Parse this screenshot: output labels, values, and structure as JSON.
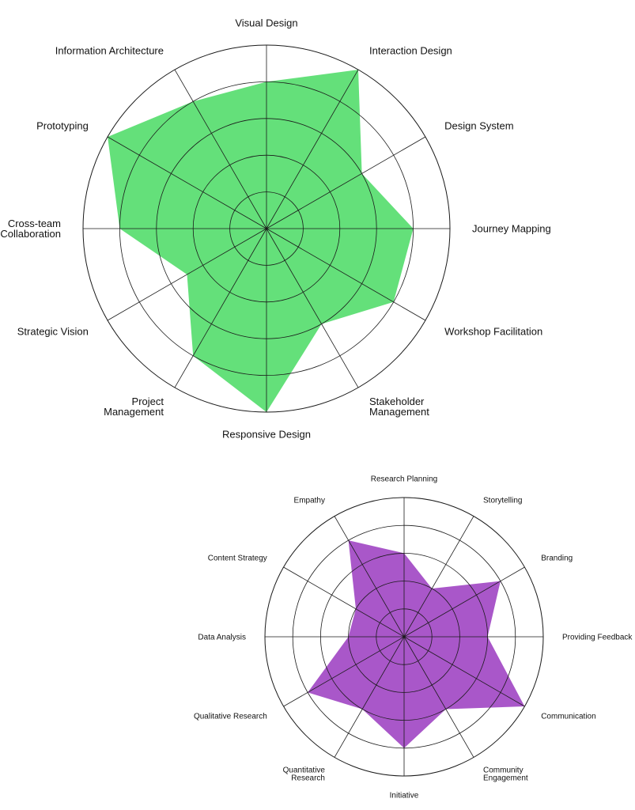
{
  "chart_data": [
    {
      "type": "radar",
      "title": "",
      "fill_color": "#64e07a",
      "max": 5,
      "rings": 5,
      "grid": true,
      "axes": [
        "Visual Design",
        "Interaction Design",
        "Design System",
        "Journey Mapping",
        "Workshop Facilitation",
        "Stakeholder Management",
        "Responsive Design",
        "Project Management",
        "Strategic Vision",
        "Cross-team Collaboration",
        "Information Architecture",
        "Prototyping"
      ],
      "axes_display_order": [
        "Visual Design",
        "Interaction Design",
        "Design System",
        "Journey Mapping",
        "Workshop Facilitation",
        "Stakeholder Management",
        "Responsive Design",
        "Project Management",
        "Strategic Vision",
        "Cross-team Collaboration",
        "Prototyping",
        "Information Architecture"
      ],
      "values": [
        4,
        5,
        3,
        4,
        4,
        3,
        5,
        4,
        2.5,
        4,
        5,
        4
      ]
    },
    {
      "type": "radar",
      "title": "",
      "fill_color": "#a957c9",
      "max": 5,
      "rings": 5,
      "grid": true,
      "axes_display_order": [
        "Research Planning",
        "Storytelling",
        "Branding",
        "Providing Feedback",
        "Communication",
        "Community Engagement",
        "Initiative",
        "Quantitative Research",
        "Qualitative Research",
        "Data Analysis",
        "Content Strategy",
        "Empathy"
      ],
      "values": [
        3,
        2,
        4,
        3,
        5,
        3,
        4,
        3,
        4,
        2,
        2,
        4
      ]
    }
  ]
}
